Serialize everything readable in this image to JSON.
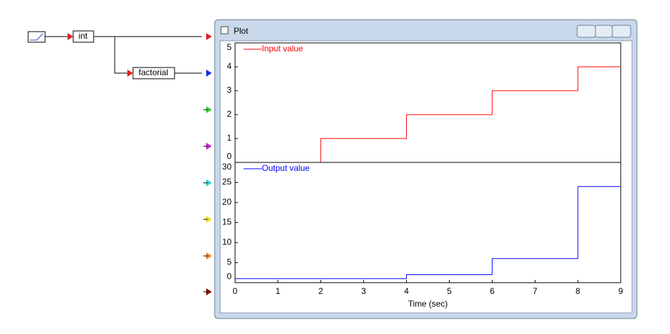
{
  "blocks": {
    "int": "int",
    "factorial": "factorial"
  },
  "window": {
    "title": "Plot"
  },
  "chart_data": [
    {
      "type": "line",
      "legend_position": "upper left",
      "x": [
        0,
        2,
        2,
        4,
        4,
        6,
        6,
        8,
        8,
        9
      ],
      "series": [
        {
          "name": "Input value",
          "color": "#ff0000",
          "values": [
            0,
            0,
            1,
            1,
            2,
            2,
            3,
            3,
            4,
            4
          ]
        }
      ],
      "xlim": [
        0,
        9
      ],
      "ylim": [
        0,
        5
      ],
      "yticks": [
        0,
        1,
        2,
        3,
        4,
        5
      ]
    },
    {
      "type": "line",
      "legend_position": "upper left",
      "xlabel": "Time (sec)",
      "x": [
        0,
        4,
        4,
        6,
        6,
        8,
        8,
        9
      ],
      "series": [
        {
          "name": "Output value",
          "color": "#0000ff",
          "values": [
            1,
            1,
            2,
            2,
            6,
            6,
            24,
            24
          ]
        }
      ],
      "xlim": [
        0,
        9
      ],
      "ylim": [
        0,
        30
      ],
      "xticks": [
        0,
        1,
        2,
        3,
        4,
        5,
        6,
        7,
        8,
        9
      ],
      "yticks": [
        0,
        5,
        10,
        15,
        20,
        25,
        30
      ]
    }
  ]
}
